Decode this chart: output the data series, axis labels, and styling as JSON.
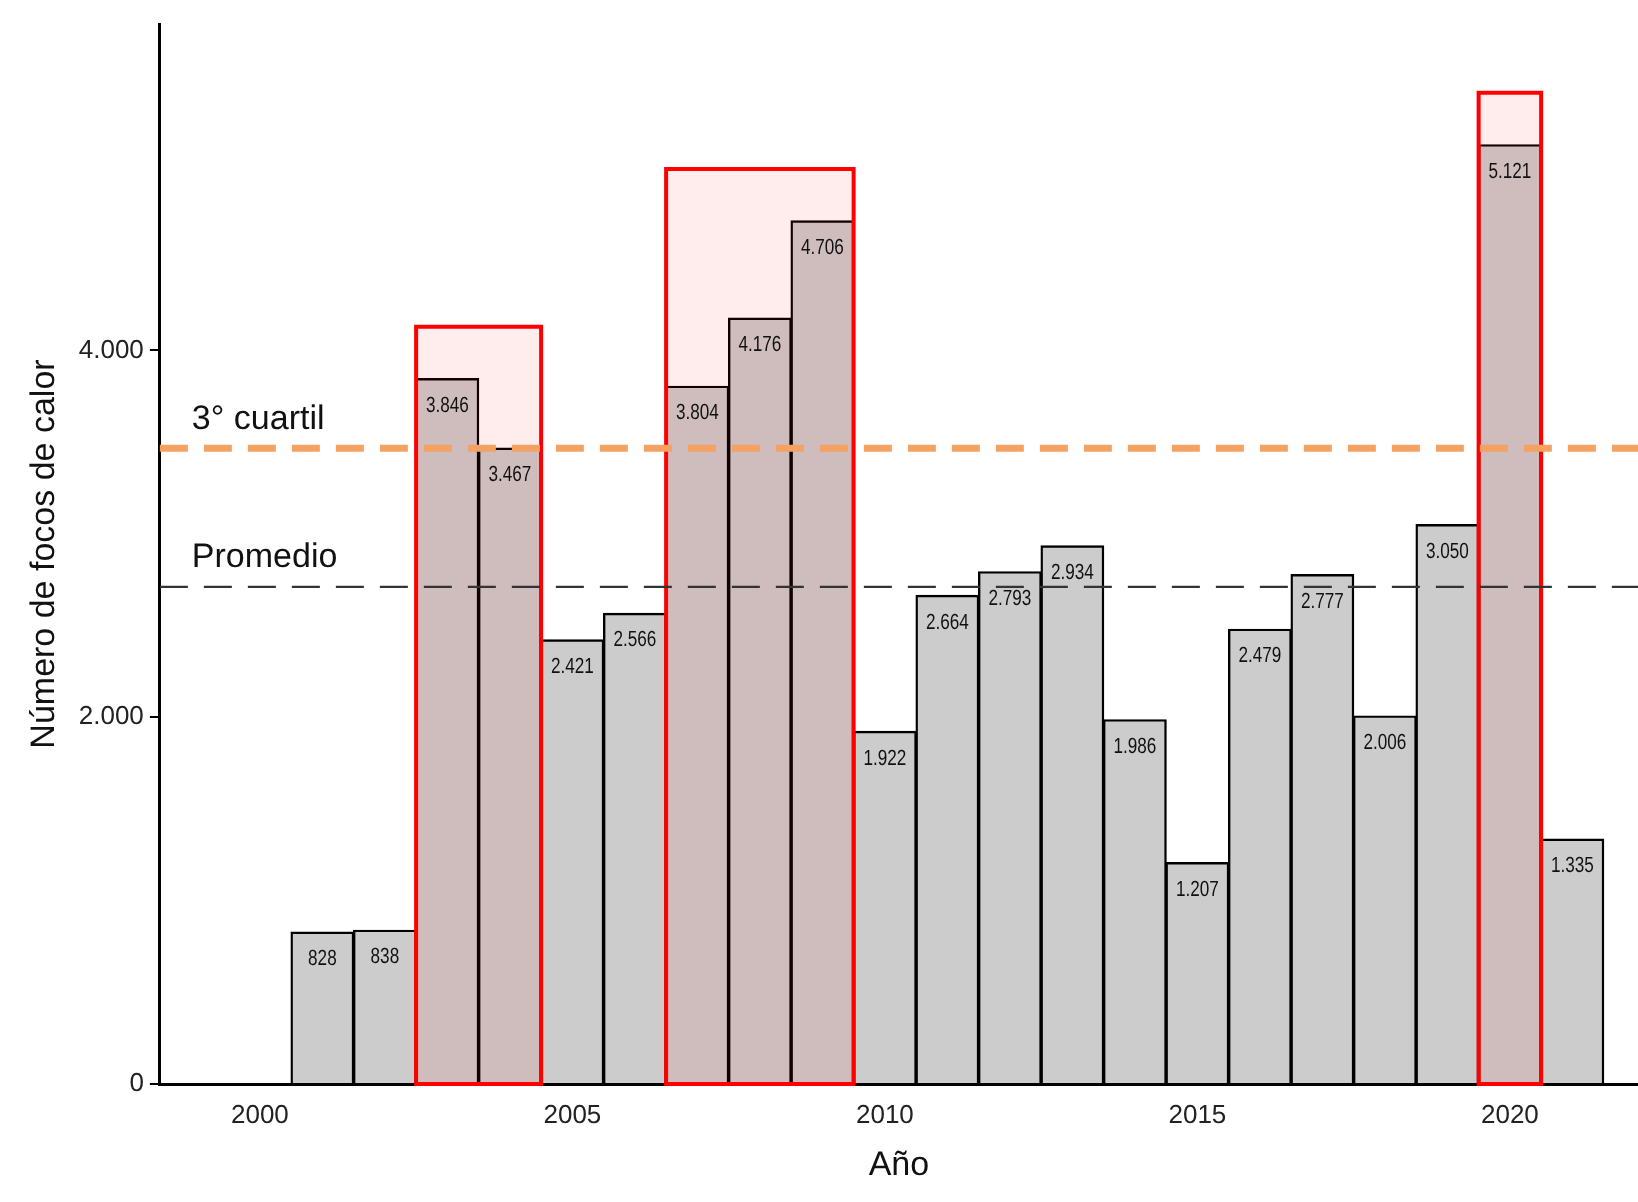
{
  "chart_data": {
    "type": "bar",
    "xlabel": "Año",
    "ylabel": "Número de focos de calor",
    "x": [
      2001,
      2002,
      2003,
      2004,
      2005,
      2006,
      2007,
      2008,
      2009,
      2010,
      2011,
      2012,
      2013,
      2014,
      2015,
      2016,
      2017,
      2018,
      2019,
      2020,
      2021
    ],
    "values": [
      828,
      838,
      3846,
      3467,
      2421,
      2566,
      3804,
      4176,
      4706,
      1922,
      2664,
      2793,
      2934,
      1986,
      1207,
      2479,
      2777,
      2006,
      3050,
      5121,
      1335
    ],
    "color": "#cccccc",
    "data_labels": true,
    "value_labels": [
      "828",
      "838",
      "3.846",
      "3.467",
      "2.421",
      "2.566",
      "3.804",
      "4.176",
      "4.706",
      "1.922",
      "2.664",
      "2.793",
      "2.934",
      "1.986",
      "1.207",
      "2.479",
      "2.777",
      "2.006",
      "3.050",
      "5.121",
      "1.335"
    ],
    "xlim": [
      1998.4,
      2022.05
    ],
    "xticks": [
      2000,
      2005,
      2010,
      2015,
      2020
    ],
    "ylim": [
      0,
      5780
    ],
    "yticks": [
      0,
      {
        "value": 2000,
        "label": "2.000"
      },
      {
        "value": 4000,
        "label": "4.000"
      }
    ],
    "grid": false,
    "legend": false,
    "ref_lines": [
      {
        "axis": "y",
        "value": 3467,
        "label": "3° cuartil",
        "color": "#f4a261",
        "line_style": "dashed"
      },
      {
        "axis": "y",
        "value": 2711,
        "label": "Promedio",
        "color": "#333333",
        "line_style": "dashed"
      }
    ],
    "bands": [
      {
        "axis": "x",
        "from": 2002.5,
        "to": 2004.5,
        "color": "#ff0000"
      },
      {
        "axis": "x",
        "from": 2006.5,
        "to": 2009.5,
        "color": "#ff0000"
      },
      {
        "axis": "x",
        "from": 2019.5,
        "to": 2020.5,
        "color": "#ff0000"
      }
    ]
  }
}
